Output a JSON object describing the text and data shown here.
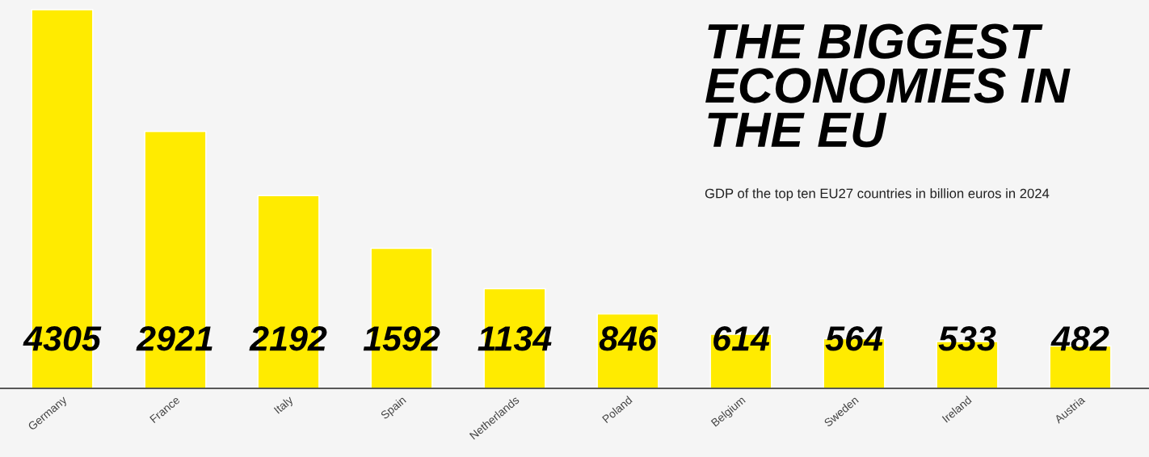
{
  "chart_data": {
    "type": "bar",
    "title": "THE BIGGEST\nECONOMIES IN\nTHE EU",
    "subtitle": "GDP of the top ten EU27 countries in billion euros in 2024",
    "categories": [
      "Germany",
      "France",
      "Italy",
      "Spain",
      "Netherlands",
      "Poland",
      "Belgium",
      "Sweden",
      "Ireland",
      "Austria"
    ],
    "values": [
      4305,
      2921,
      2192,
      1592,
      1134,
      846,
      614,
      564,
      533,
      482
    ],
    "color": "#ffeb00",
    "relative": false,
    "data_labels": true,
    "grid": false,
    "legend": false
  }
}
